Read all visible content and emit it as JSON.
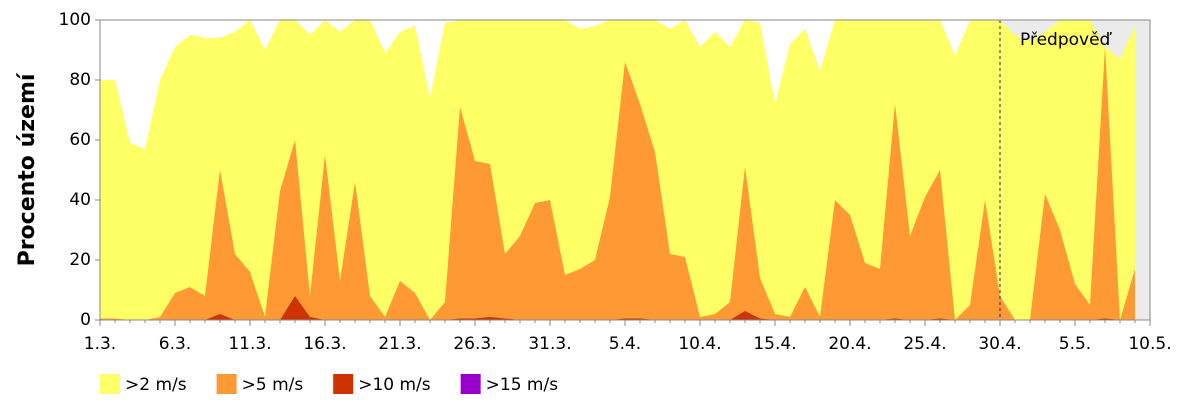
{
  "chart_data": {
    "type": "area",
    "ylabel": "Procento území",
    "categories": [
      "1.3.",
      null,
      null,
      null,
      null,
      "6.3.",
      null,
      null,
      null,
      null,
      "11.3.",
      null,
      null,
      null,
      null,
      "16.3.",
      null,
      null,
      null,
      null,
      "21.3.",
      null,
      null,
      null,
      null,
      "26.3.",
      null,
      null,
      null,
      null,
      "31.3.",
      null,
      null,
      null,
      null,
      "5.4.",
      null,
      null,
      null,
      null,
      "10.4.",
      null,
      null,
      null,
      null,
      "15.4.",
      null,
      null,
      null,
      null,
      "20.4.",
      null,
      null,
      null,
      null,
      "25.4.",
      null,
      null,
      null,
      null,
      "30.4.",
      null,
      null,
      null,
      null,
      "5.5.",
      null,
      null,
      null,
      null,
      "10.5."
    ],
    "series": [
      {
        "name": ">2 m/s",
        "color": "#ffff66",
        "values": [
          80,
          80,
          59,
          57,
          80,
          91,
          95,
          94,
          94,
          96,
          100,
          90,
          100,
          100,
          95,
          100,
          96,
          100,
          100,
          89,
          96,
          98,
          74,
          99,
          100,
          100,
          100,
          100,
          100,
          100,
          100,
          100,
          97,
          98,
          100,
          100,
          100,
          100,
          97,
          100,
          91,
          96,
          91,
          100,
          99,
          72,
          92,
          97,
          83,
          100,
          100,
          100,
          100,
          100,
          100,
          100,
          100,
          88,
          100,
          100,
          100,
          95,
          93,
          96,
          100,
          100,
          100,
          91,
          87,
          98,
          null
        ]
      },
      {
        "name": ">5 m/s",
        "color": "#ff9933",
        "values": [
          0.5,
          0.5,
          0,
          0,
          1,
          9,
          11,
          8,
          50,
          22,
          16,
          1,
          43,
          60,
          8,
          55,
          13,
          46,
          8,
          1,
          13,
          9,
          0,
          6,
          71,
          53,
          52,
          22,
          28,
          39,
          40,
          15,
          17,
          20,
          41,
          86,
          72,
          56,
          22,
          21,
          1,
          2,
          6,
          51,
          14,
          2,
          1,
          11,
          1,
          40,
          35,
          19,
          17,
          72,
          28,
          41,
          50,
          0,
          5,
          40,
          8,
          0,
          0,
          42,
          30,
          12,
          5,
          91,
          0,
          17,
          null
        ]
      },
      {
        "name": ">10 m/s",
        "color": "#cc3300",
        "values": [
          0,
          0,
          0,
          0,
          0,
          0,
          0,
          0,
          2,
          0,
          0,
          0,
          0,
          8,
          1,
          0,
          0,
          0,
          0,
          0,
          0,
          0,
          0,
          0,
          0.5,
          0.5,
          1,
          0.5,
          0,
          0,
          0,
          0,
          0,
          0,
          0,
          0.5,
          0.5,
          0,
          0,
          0,
          0,
          0,
          0,
          3,
          0.5,
          0,
          0,
          0,
          0,
          0,
          0,
          0,
          0,
          0.5,
          0,
          0,
          0.5,
          0,
          0,
          0,
          0,
          0,
          0,
          0,
          0,
          0,
          0,
          0.5,
          0,
          0,
          null
        ]
      },
      {
        "name": ">15 m/s",
        "color": "#9900cc",
        "values": [
          0,
          0,
          0,
          0,
          0,
          0,
          0,
          0,
          0,
          0,
          0,
          0,
          0,
          0,
          0,
          0,
          0,
          0,
          0,
          0,
          0,
          0,
          0,
          0,
          0,
          0,
          0,
          0,
          0,
          0,
          0,
          0,
          0,
          0,
          0,
          0,
          0,
          0,
          0,
          0,
          0,
          0,
          0,
          0,
          0,
          0,
          0,
          0,
          0,
          0,
          0,
          0,
          0,
          0,
          0,
          0,
          0,
          0,
          0,
          0,
          0,
          0,
          0,
          0,
          0,
          0,
          0,
          0,
          0,
          0,
          null
        ]
      }
    ],
    "ylim": [
      0,
      100
    ],
    "yticks": [
      0,
      20,
      40,
      60,
      80,
      100
    ],
    "forecast": {
      "label": "Předpověď",
      "start": "30.4.",
      "color": "#ebebeb"
    }
  }
}
